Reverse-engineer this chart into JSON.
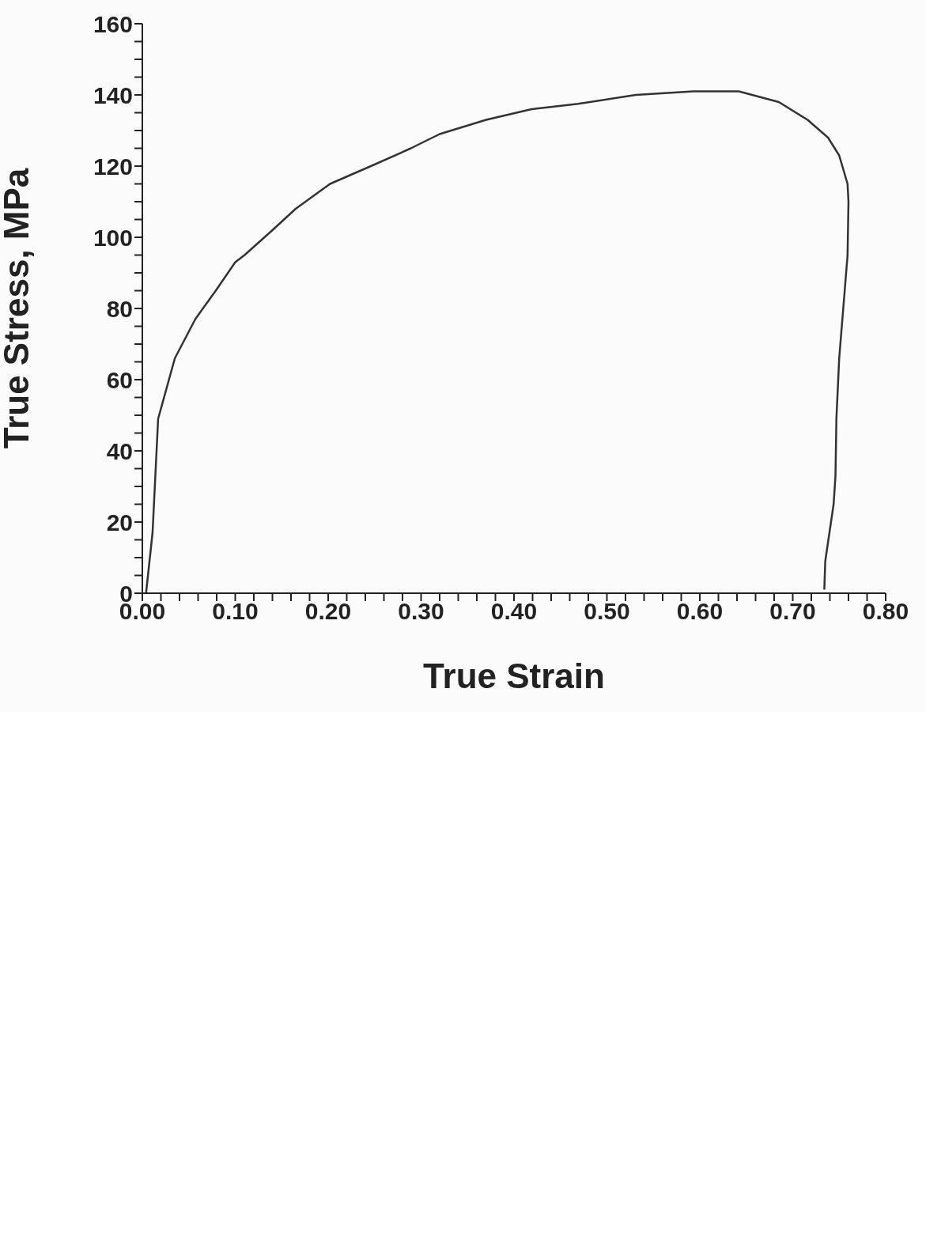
{
  "chart_data": {
    "type": "line",
    "xlabel": "True Strain",
    "ylabel": "True Stress, MPa",
    "x": [
      0.004,
      0.011,
      0.017,
      0.035,
      0.057,
      0.079,
      0.1,
      0.11,
      0.14,
      0.165,
      0.202,
      0.246,
      0.289,
      0.32,
      0.37,
      0.419,
      0.469,
      0.531,
      0.593,
      0.642,
      0.685,
      0.716,
      0.738,
      0.75,
      0.759,
      0.76,
      0.759,
      0.755,
      0.75,
      0.747,
      0.746,
      0.744,
      0.735,
      0.734
    ],
    "series": [
      {
        "color": "#333333",
        "values": [
          0,
          17,
          49,
          66,
          77,
          85,
          93,
          95,
          102,
          108,
          115,
          120,
          125,
          129,
          133,
          136,
          137.5,
          140,
          141,
          141,
          138,
          133,
          128,
          123,
          115,
          110,
          95,
          82,
          66,
          49,
          33,
          25,
          9,
          1
        ]
      }
    ],
    "xlim": [
      0,
      0.8
    ],
    "xticks": [
      {
        "value": 0,
        "label": "0.00"
      },
      {
        "value": 0.02,
        "label": null
      },
      {
        "value": 0.04,
        "label": null
      },
      {
        "value": 0.06,
        "label": null
      },
      {
        "value": 0.08,
        "label": null
      },
      {
        "value": 0.1,
        "label": "0.10"
      },
      {
        "value": 0.12,
        "label": null
      },
      {
        "value": 0.14,
        "label": null
      },
      {
        "value": 0.16,
        "label": null
      },
      {
        "value": 0.18,
        "label": null
      },
      {
        "value": 0.2,
        "label": "0.20"
      },
      {
        "value": 0.22,
        "label": null
      },
      {
        "value": 0.24,
        "label": null
      },
      {
        "value": 0.26,
        "label": null
      },
      {
        "value": 0.28,
        "label": null
      },
      {
        "value": 0.3,
        "label": "0.30"
      },
      {
        "value": 0.32,
        "label": null
      },
      {
        "value": 0.34,
        "label": null
      },
      {
        "value": 0.36,
        "label": null
      },
      {
        "value": 0.38,
        "label": null
      },
      {
        "value": 0.4,
        "label": "0.40"
      },
      {
        "value": 0.42,
        "label": null
      },
      {
        "value": 0.44,
        "label": null
      },
      {
        "value": 0.46,
        "label": null
      },
      {
        "value": 0.48,
        "label": null
      },
      {
        "value": 0.5,
        "label": "0.50"
      },
      {
        "value": 0.52,
        "label": null
      },
      {
        "value": 0.54,
        "label": null
      },
      {
        "value": 0.56,
        "label": null
      },
      {
        "value": 0.58,
        "label": null
      },
      {
        "value": 0.6,
        "label": "0.60"
      },
      {
        "value": 0.62,
        "label": null
      },
      {
        "value": 0.64,
        "label": null
      },
      {
        "value": 0.66,
        "label": null
      },
      {
        "value": 0.68,
        "label": null
      },
      {
        "value": 0.7,
        "label": "0.70"
      },
      {
        "value": 0.72,
        "label": null
      },
      {
        "value": 0.74,
        "label": null
      },
      {
        "value": 0.76,
        "label": null
      },
      {
        "value": 0.78,
        "label": null
      },
      {
        "value": 0.8,
        "label": "0.80"
      }
    ],
    "ylim": [
      0,
      160
    ],
    "yticks": [
      0,
      {
        "value": 5,
        "label": null
      },
      {
        "value": 10,
        "label": null
      },
      {
        "value": 15,
        "label": null
      },
      20,
      {
        "value": 25,
        "label": null
      },
      {
        "value": 30,
        "label": null
      },
      {
        "value": 35,
        "label": null
      },
      40,
      {
        "value": 45,
        "label": null
      },
      {
        "value": 50,
        "label": null
      },
      {
        "value": 55,
        "label": null
      },
      60,
      {
        "value": 65,
        "label": null
      },
      {
        "value": 70,
        "label": null
      },
      {
        "value": 75,
        "label": null
      },
      80,
      {
        "value": 85,
        "label": null
      },
      {
        "value": 90,
        "label": null
      },
      {
        "value": 95,
        "label": null
      },
      100,
      {
        "value": 105,
        "label": null
      },
      {
        "value": 110,
        "label": null
      },
      {
        "value": 115,
        "label": null
      },
      120,
      {
        "value": 125,
        "label": null
      },
      {
        "value": 130,
        "label": null
      },
      {
        "value": 135,
        "label": null
      },
      140,
      {
        "value": 145,
        "label": null
      },
      {
        "value": 150,
        "label": null
      },
      {
        "value": 155,
        "label": null
      },
      160
    ],
    "grid": false,
    "legend": false,
    "marker": "none",
    "line_style": "solid"
  }
}
